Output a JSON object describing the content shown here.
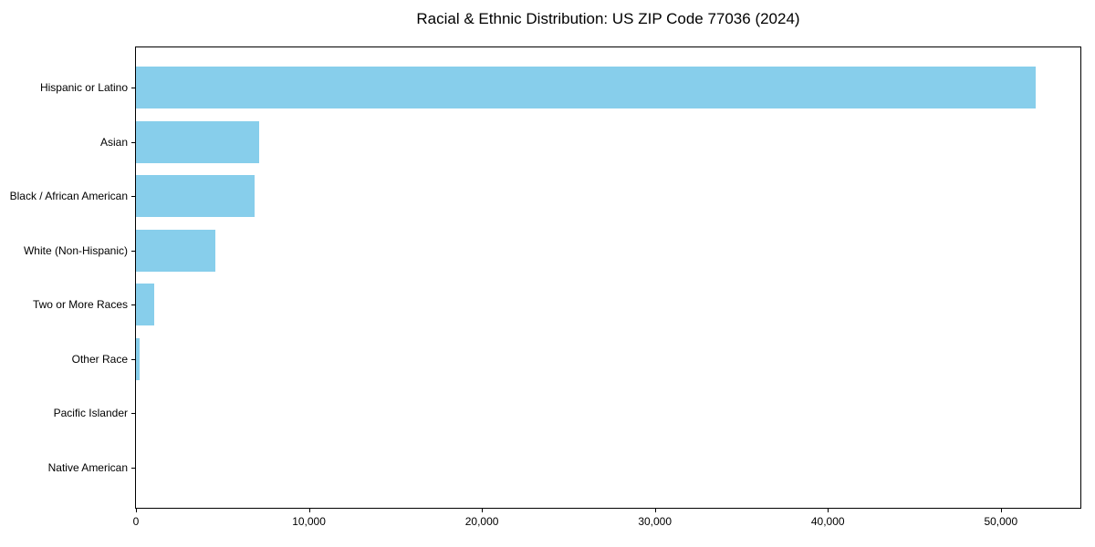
{
  "chart_data": {
    "type": "bar",
    "orientation": "horizontal",
    "title": "Racial & Ethnic Distribution: US ZIP Code 77036 (2024)",
    "categories": [
      "Hispanic or Latino",
      "Asian",
      "Black / African American",
      "White (Non-Hispanic)",
      "Two or More Races",
      "Other Race",
      "Pacific Islander",
      "Native American"
    ],
    "values": [
      52000,
      7100,
      6850,
      4600,
      1050,
      200,
      0,
      0
    ],
    "xlabel": "",
    "ylabel": "",
    "xlim": [
      0,
      54600
    ],
    "x_ticks": [
      {
        "value": 0,
        "label": "0"
      },
      {
        "value": 10000,
        "label": "10,000"
      },
      {
        "value": 20000,
        "label": "20,000"
      },
      {
        "value": 30000,
        "label": "30,000"
      },
      {
        "value": 40000,
        "label": "40,000"
      },
      {
        "value": 50000,
        "label": "50,000"
      }
    ],
    "grid": false,
    "legend": null,
    "bar_color": "#87CEEB",
    "axis_color": "#000000",
    "background_color": "#FFFFFF"
  }
}
